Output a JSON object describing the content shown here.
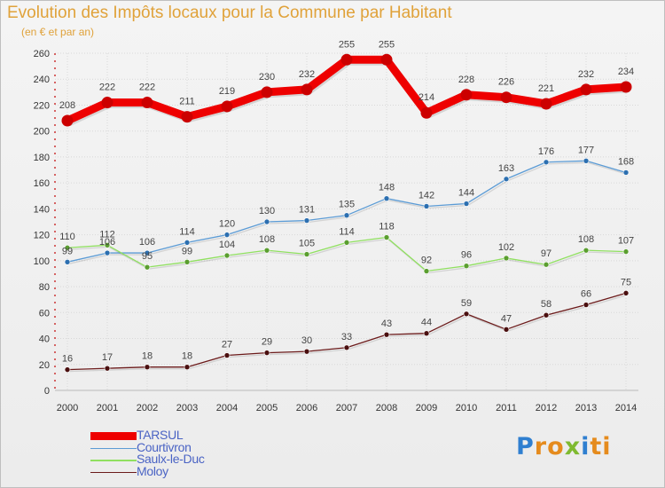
{
  "header": {
    "title": "Evolution des Impôts locaux pour la Commune par Habitant",
    "subtitle": "(en € et par an)"
  },
  "logo": {
    "text": "Proxiti",
    "letters": [
      {
        "ch": "P",
        "color": "#2f7fd0"
      },
      {
        "ch": "r",
        "color": "#e58b1d"
      },
      {
        "ch": "o",
        "color": "#e58b1d"
      },
      {
        "ch": "x",
        "color": "#7fba30"
      },
      {
        "ch": "i",
        "color": "#2f7fd0"
      },
      {
        "ch": "t",
        "color": "#e58b1d"
      },
      {
        "ch": "i",
        "color": "#e58b1d"
      }
    ]
  },
  "chart_data": {
    "type": "line",
    "title": "Evolution des Impôts locaux pour la Commune par Habitant",
    "subtitle": "(en € et par an)",
    "x": [
      "2000",
      "2001",
      "2002",
      "2003",
      "2004",
      "2005",
      "2006",
      "2007",
      "2008",
      "2009",
      "2010",
      "2011",
      "2012",
      "2013",
      "2014"
    ],
    "ylim": [
      0,
      260
    ],
    "yticks": [
      0,
      20,
      40,
      60,
      80,
      100,
      120,
      140,
      160,
      180,
      200,
      220,
      240,
      260
    ],
    "grid": true,
    "legend_position": "bottom-left",
    "series": [
      {
        "name": "TARSUL",
        "color": "#ee0000",
        "values": [
          208,
          222,
          222,
          211,
          219,
          230,
          232,
          255,
          255,
          214,
          228,
          226,
          221,
          232,
          234
        ]
      },
      {
        "name": "Courtivron",
        "color": "#5b9bd5",
        "values": [
          99,
          106,
          106,
          114,
          120,
          130,
          131,
          135,
          148,
          142,
          144,
          163,
          176,
          177,
          168
        ]
      },
      {
        "name": "Saulx-le-Duc",
        "color": "#90e060",
        "values": [
          110,
          112,
          95,
          99,
          104,
          108,
          105,
          114,
          118,
          92,
          96,
          102,
          97,
          108,
          107
        ]
      },
      {
        "name": "Moloy",
        "color": "#6b1a1a",
        "values": [
          16,
          17,
          18,
          18,
          27,
          29,
          30,
          33,
          43,
          44,
          59,
          47,
          58,
          66,
          75
        ]
      }
    ]
  }
}
